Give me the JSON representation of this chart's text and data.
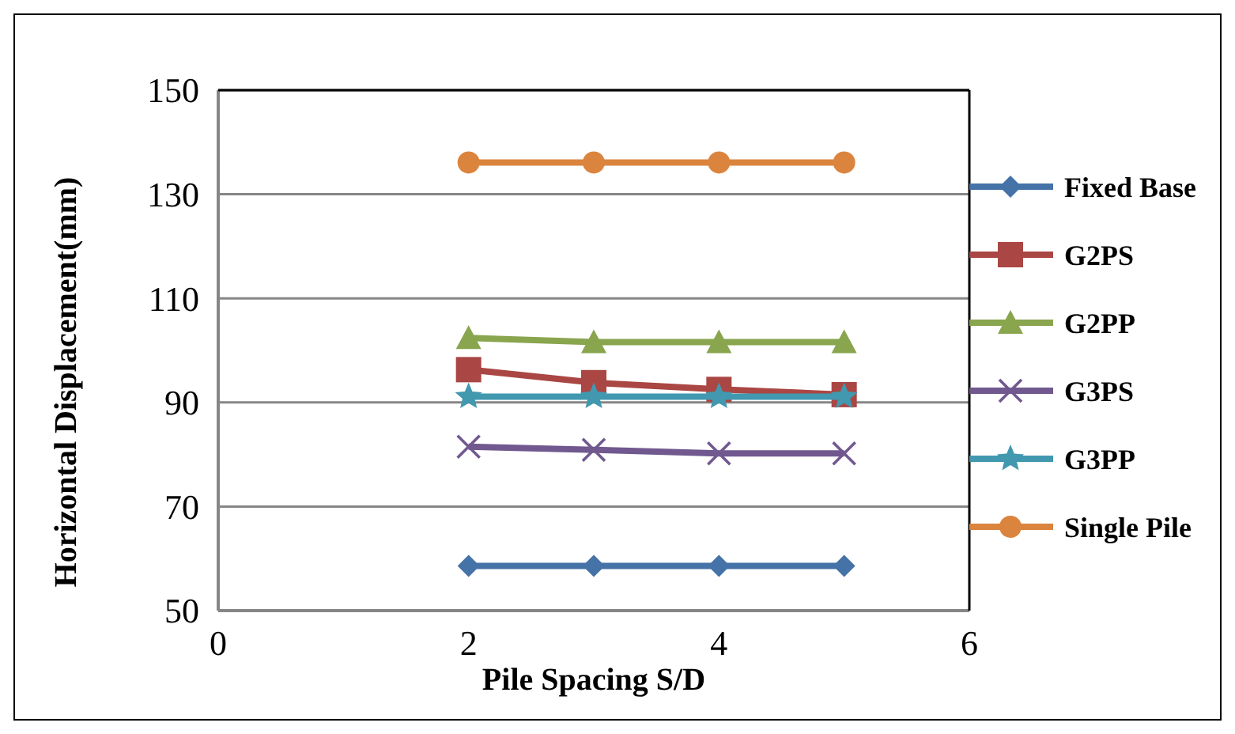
{
  "chart_data": {
    "type": "line",
    "xlabel": "Pile Spacing S/D",
    "ylabel": "Horizontal Displacement(mm)",
    "x": [
      2,
      3,
      4,
      5
    ],
    "xlim": [
      0,
      6
    ],
    "xticks": [
      0,
      2,
      4,
      6
    ],
    "ylim": [
      50,
      150
    ],
    "yticks": [
      50,
      70,
      90,
      110,
      130,
      150
    ],
    "grid": "y",
    "legend": "right",
    "series": [
      {
        "name": "Fixed Base",
        "color": "#4572a7",
        "marker": "diamond",
        "values": [
          58.6,
          58.6,
          58.6,
          58.6
        ]
      },
      {
        "name": "G2PS",
        "color": "#aa4643",
        "marker": "square",
        "values": [
          96.3,
          93.8,
          92.5,
          91.5
        ]
      },
      {
        "name": "G2PP",
        "color": "#89a54e",
        "marker": "triangle",
        "values": [
          102.4,
          101.6,
          101.6,
          101.6
        ]
      },
      {
        "name": "G3PS",
        "color": "#71588f",
        "marker": "cross",
        "values": [
          81.5,
          80.9,
          80.2,
          80.2
        ]
      },
      {
        "name": "G3PP",
        "color": "#4198af",
        "marker": "star",
        "values": [
          91.1,
          91.1,
          91.1,
          91.1
        ]
      },
      {
        "name": "Single Pile",
        "color": "#db843d",
        "marker": "circle",
        "values": [
          136.1,
          136.1,
          136.1,
          136.1
        ]
      }
    ]
  }
}
